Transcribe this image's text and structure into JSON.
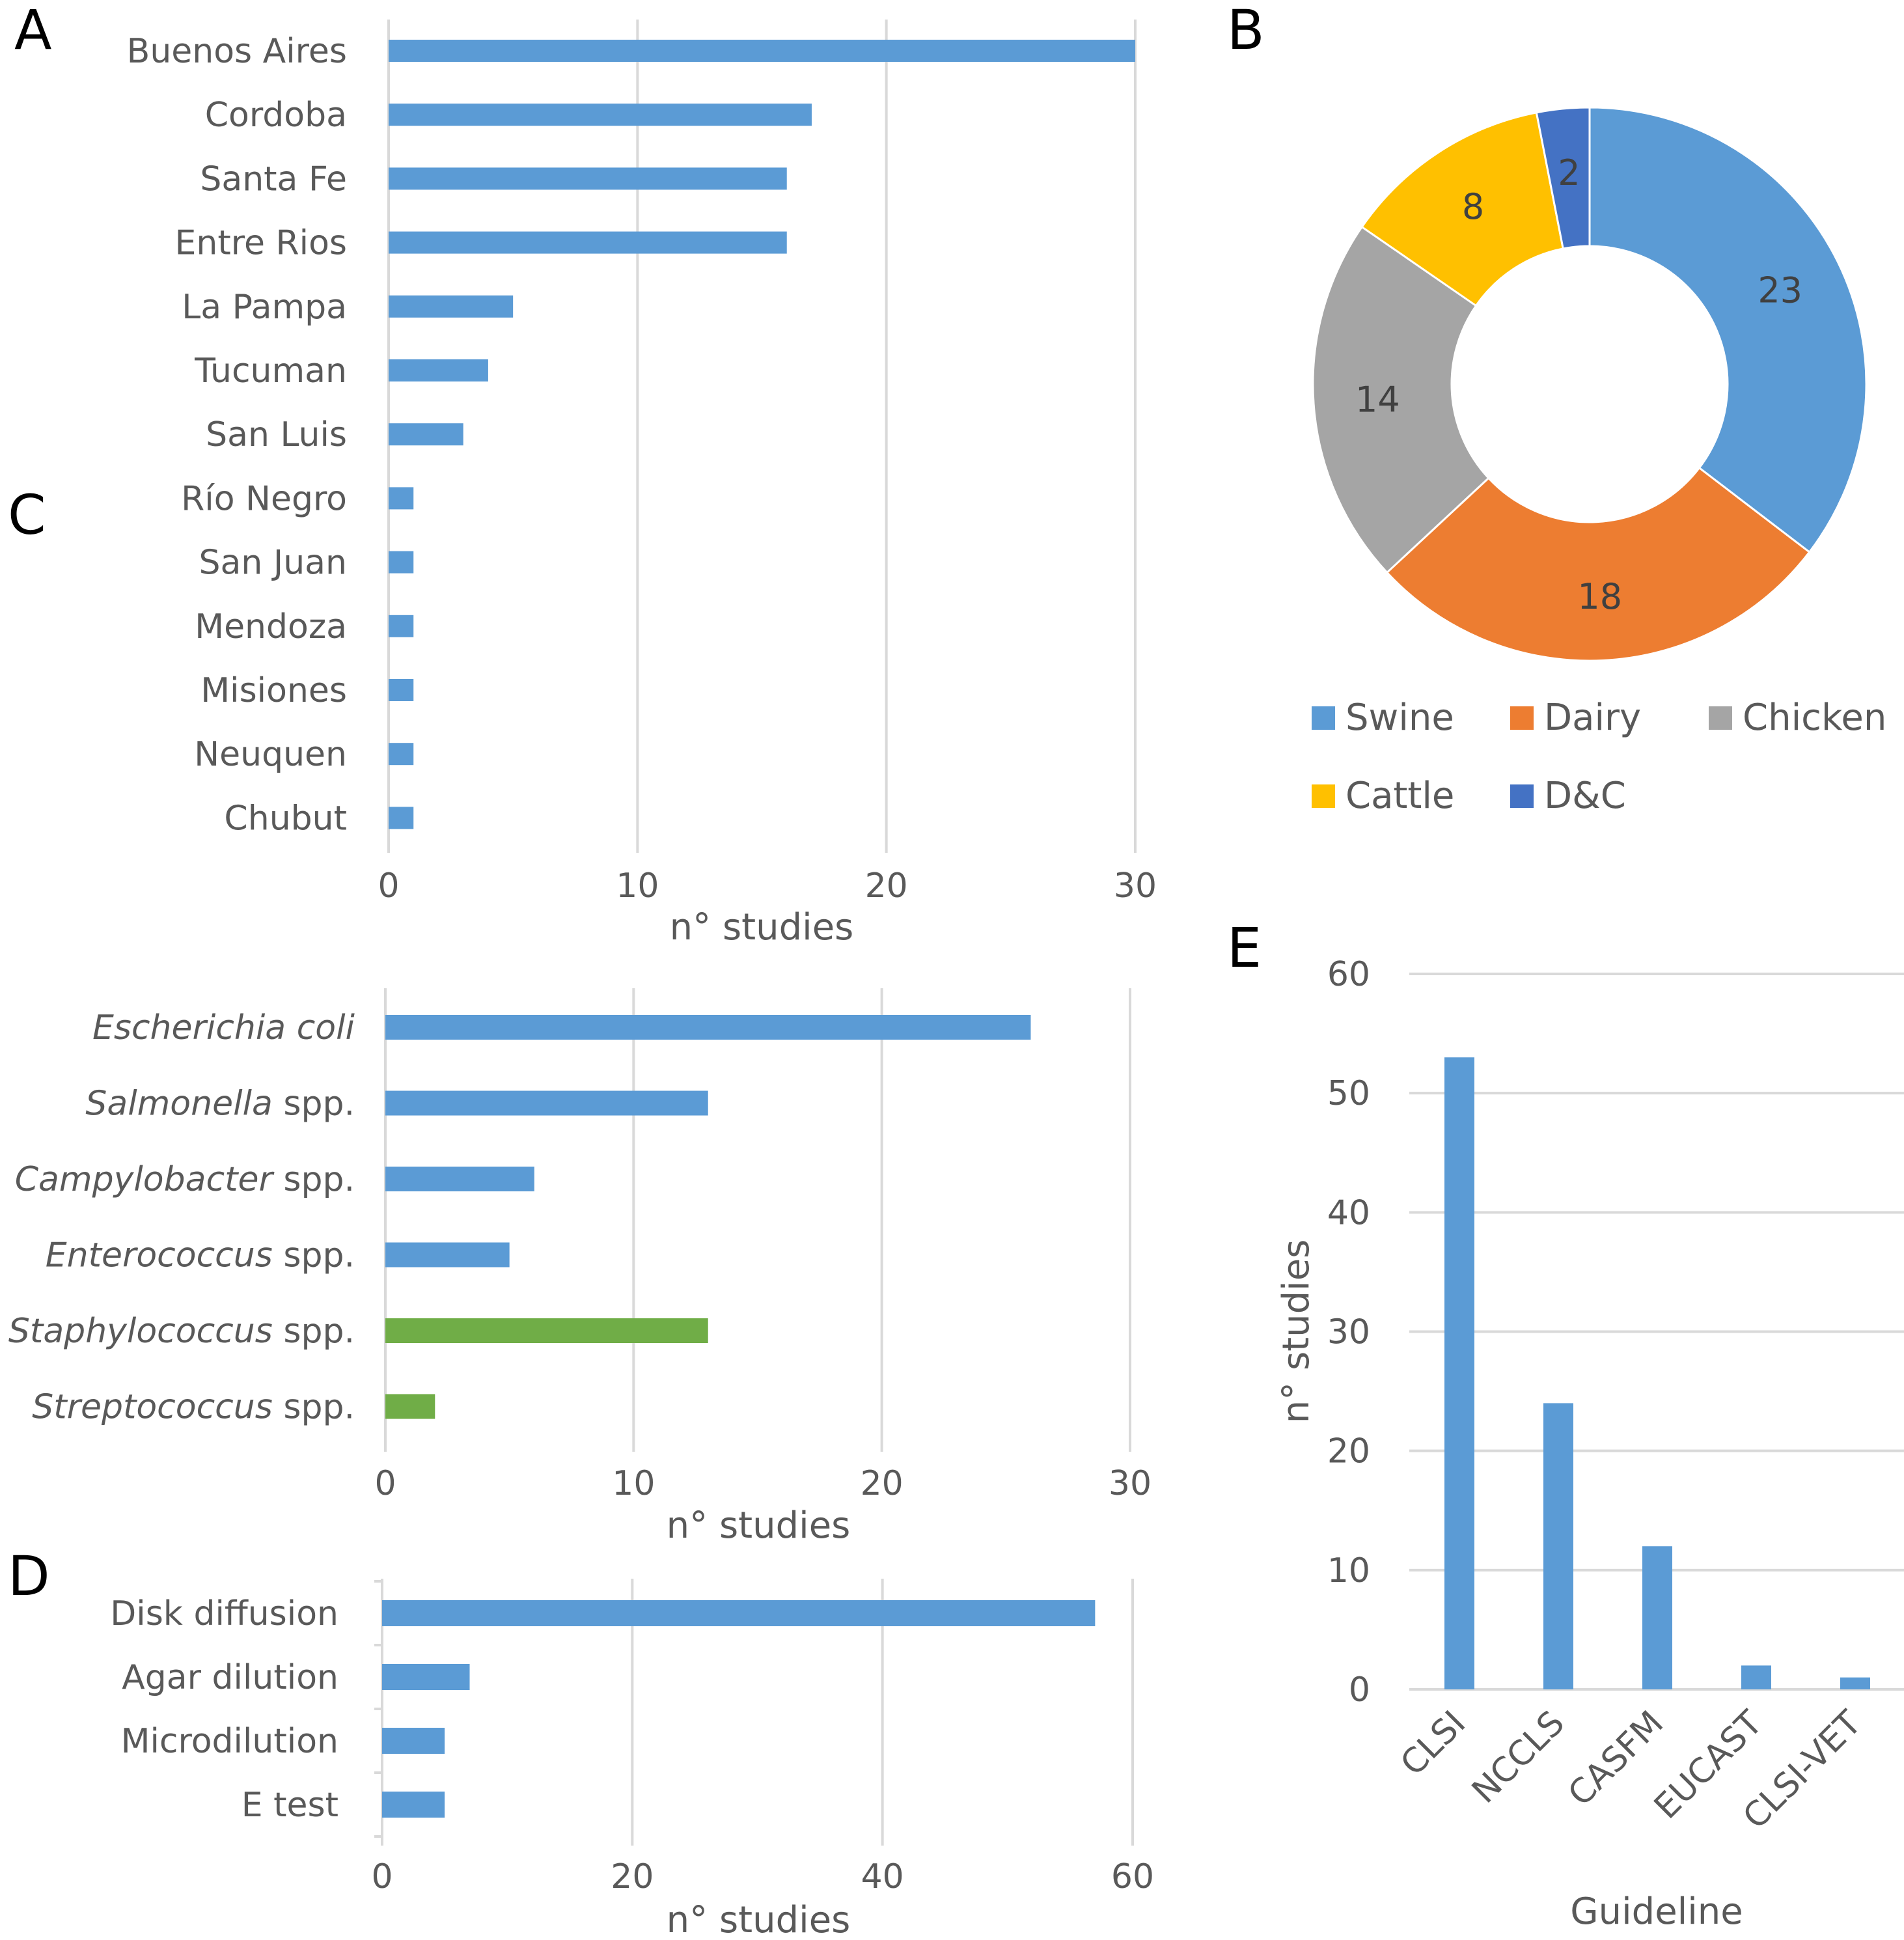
{
  "chart_data": [
    {
      "panel": "A",
      "type": "bar",
      "orientation": "horizontal",
      "categories": [
        "Buenos Aires",
        "Cordoba",
        "Santa Fe",
        "Entre Rios",
        "La Pampa",
        "Tucuman",
        "San Luis",
        "Río Negro",
        "San Juan",
        "Mendoza",
        "Misiones",
        "Neuquen",
        "Chubut"
      ],
      "values": [
        30,
        17,
        16,
        16,
        5,
        4,
        3,
        1,
        1,
        1,
        1,
        1,
        1
      ],
      "xlim": [
        0,
        30
      ],
      "xticks": [
        "0",
        "10",
        "20",
        "30"
      ],
      "xlabel": "n° studies",
      "color": "#5b9bd5"
    },
    {
      "panel": "B",
      "type": "pie",
      "variant": "donut",
      "labels": [
        "Swine",
        "Dairy",
        "Chicken",
        "Cattle",
        "D&C"
      ],
      "values": [
        23,
        18,
        14,
        8,
        2
      ],
      "colors": [
        "#5b9bd5",
        "#ed7d31",
        "#a5a5a5",
        "#ffc000",
        "#4472c4"
      ],
      "legend": "bottom"
    },
    {
      "panel": "C",
      "type": "bar",
      "orientation": "horizontal",
      "categories": [
        {
          "italic": "Escherichia coli",
          "plain": ""
        },
        {
          "italic": "Salmonella",
          "plain": " spp."
        },
        {
          "italic": "Campylobacter",
          "plain": " spp."
        },
        {
          "italic": "Enterococcus",
          "plain": " spp."
        },
        {
          "italic": "Staphylococcus",
          "plain": " spp."
        },
        {
          "italic": "Streptococcus",
          "plain": " spp."
        }
      ],
      "values": [
        26,
        13,
        6,
        5,
        13,
        2
      ],
      "colors": [
        "#5b9bd5",
        "#5b9bd5",
        "#5b9bd5",
        "#5b9bd5",
        "#70ad47",
        "#70ad47"
      ],
      "xlim": [
        0,
        30
      ],
      "xticks": [
        "0",
        "10",
        "20",
        "30"
      ],
      "xlabel": "n° studies"
    },
    {
      "panel": "D",
      "type": "bar",
      "orientation": "horizontal",
      "categories": [
        "Disk diffusion",
        "Agar dilution",
        "Microdilution",
        "E test"
      ],
      "values": [
        57,
        7,
        5,
        5
      ],
      "xlim": [
        0,
        60
      ],
      "xticks": [
        "0",
        "20",
        "40",
        "60"
      ],
      "xlabel": "n° studies",
      "color": "#5b9bd5"
    },
    {
      "panel": "E",
      "type": "bar",
      "orientation": "vertical",
      "categories": [
        "CLSI",
        "NCCLS",
        "CASFM",
        "EUCAST",
        "CLSI-VET"
      ],
      "values": [
        53,
        24,
        12,
        2,
        1
      ],
      "ylim": [
        0,
        60
      ],
      "yticks": [
        "0",
        "10",
        "20",
        "30",
        "40",
        "50",
        "60"
      ],
      "xlabel": "Guideline",
      "ylabel": "n° studies",
      "color": "#5b9bd5"
    }
  ]
}
